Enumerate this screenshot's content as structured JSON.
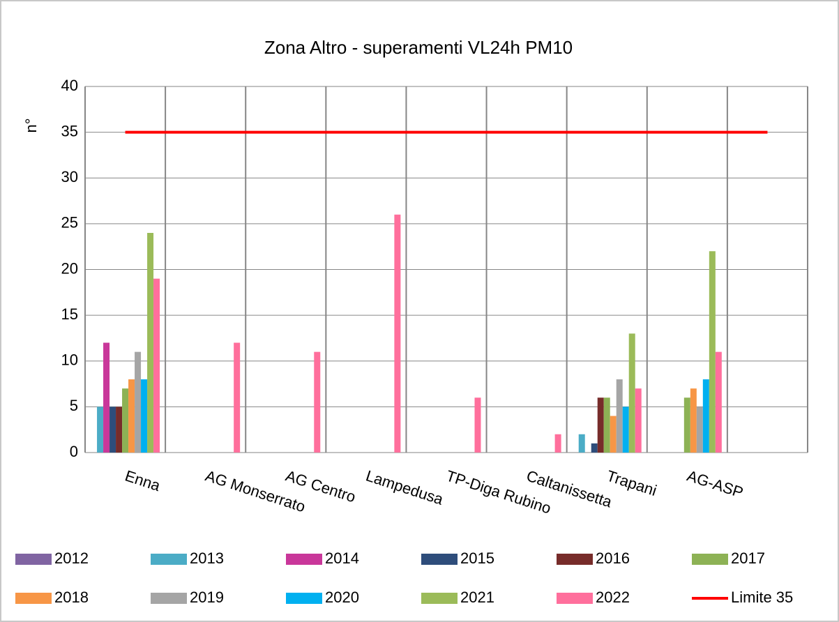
{
  "chart_data": {
    "type": "bar",
    "title": "Zona Altro - superamenti VL24h PM10",
    "y_label": "n°",
    "categories": [
      "Enna",
      "AG Monserrato",
      "AG Centro",
      "Lampedusa",
      "TP-Diga Rubino",
      "Caltanissetta",
      "Trapani",
      "AG-ASP",
      null
    ],
    "ylim": [
      0,
      40
    ],
    "yticks": [
      0,
      5,
      10,
      15,
      20,
      25,
      30,
      35,
      40
    ],
    "grid": true,
    "legend": "bottom",
    "series": [
      {
        "name": "2012",
        "color": "#8064a2",
        "values": [
          null,
          null,
          null,
          null,
          null,
          null,
          null,
          null,
          null
        ]
      },
      {
        "name": "2013",
        "color": "#4bacc6",
        "values": [
          5,
          null,
          null,
          null,
          null,
          null,
          2,
          null,
          null
        ]
      },
      {
        "name": "2014",
        "color": "#c9379a",
        "values": [
          12,
          null,
          null,
          null,
          null,
          null,
          null,
          null,
          null
        ]
      },
      {
        "name": "2015",
        "color": "#2e4d7b",
        "values": [
          5,
          null,
          null,
          null,
          null,
          null,
          1,
          null,
          null
        ]
      },
      {
        "name": "2016",
        "color": "#772c2a",
        "values": [
          5,
          null,
          null,
          null,
          null,
          null,
          6,
          null,
          null
        ]
      },
      {
        "name": "2017",
        "color": "#8db255",
        "values": [
          7,
          null,
          null,
          null,
          null,
          null,
          6,
          6,
          null
        ]
      },
      {
        "name": "2018",
        "color": "#f79646",
        "values": [
          8,
          null,
          null,
          null,
          null,
          null,
          4,
          7,
          null
        ]
      },
      {
        "name": "2019",
        "color": "#a5a5a5",
        "values": [
          11,
          null,
          null,
          null,
          null,
          null,
          8,
          5,
          null
        ]
      },
      {
        "name": "2020",
        "color": "#00b0f0",
        "values": [
          8,
          null,
          null,
          null,
          null,
          null,
          5,
          8,
          null
        ]
      },
      {
        "name": "2021",
        "color": "#9bbb59",
        "values": [
          24,
          null,
          null,
          null,
          null,
          null,
          13,
          22,
          null
        ]
      },
      {
        "name": "2022",
        "color": "#ff6f9c",
        "values": [
          19,
          12,
          11,
          26,
          6,
          2,
          7,
          11,
          null
        ]
      },
      {
        "name": "Limite 35",
        "color": "#ff0000",
        "type": "line",
        "values": [
          35,
          35,
          35,
          35,
          35,
          35,
          35,
          35,
          35
        ]
      }
    ]
  }
}
